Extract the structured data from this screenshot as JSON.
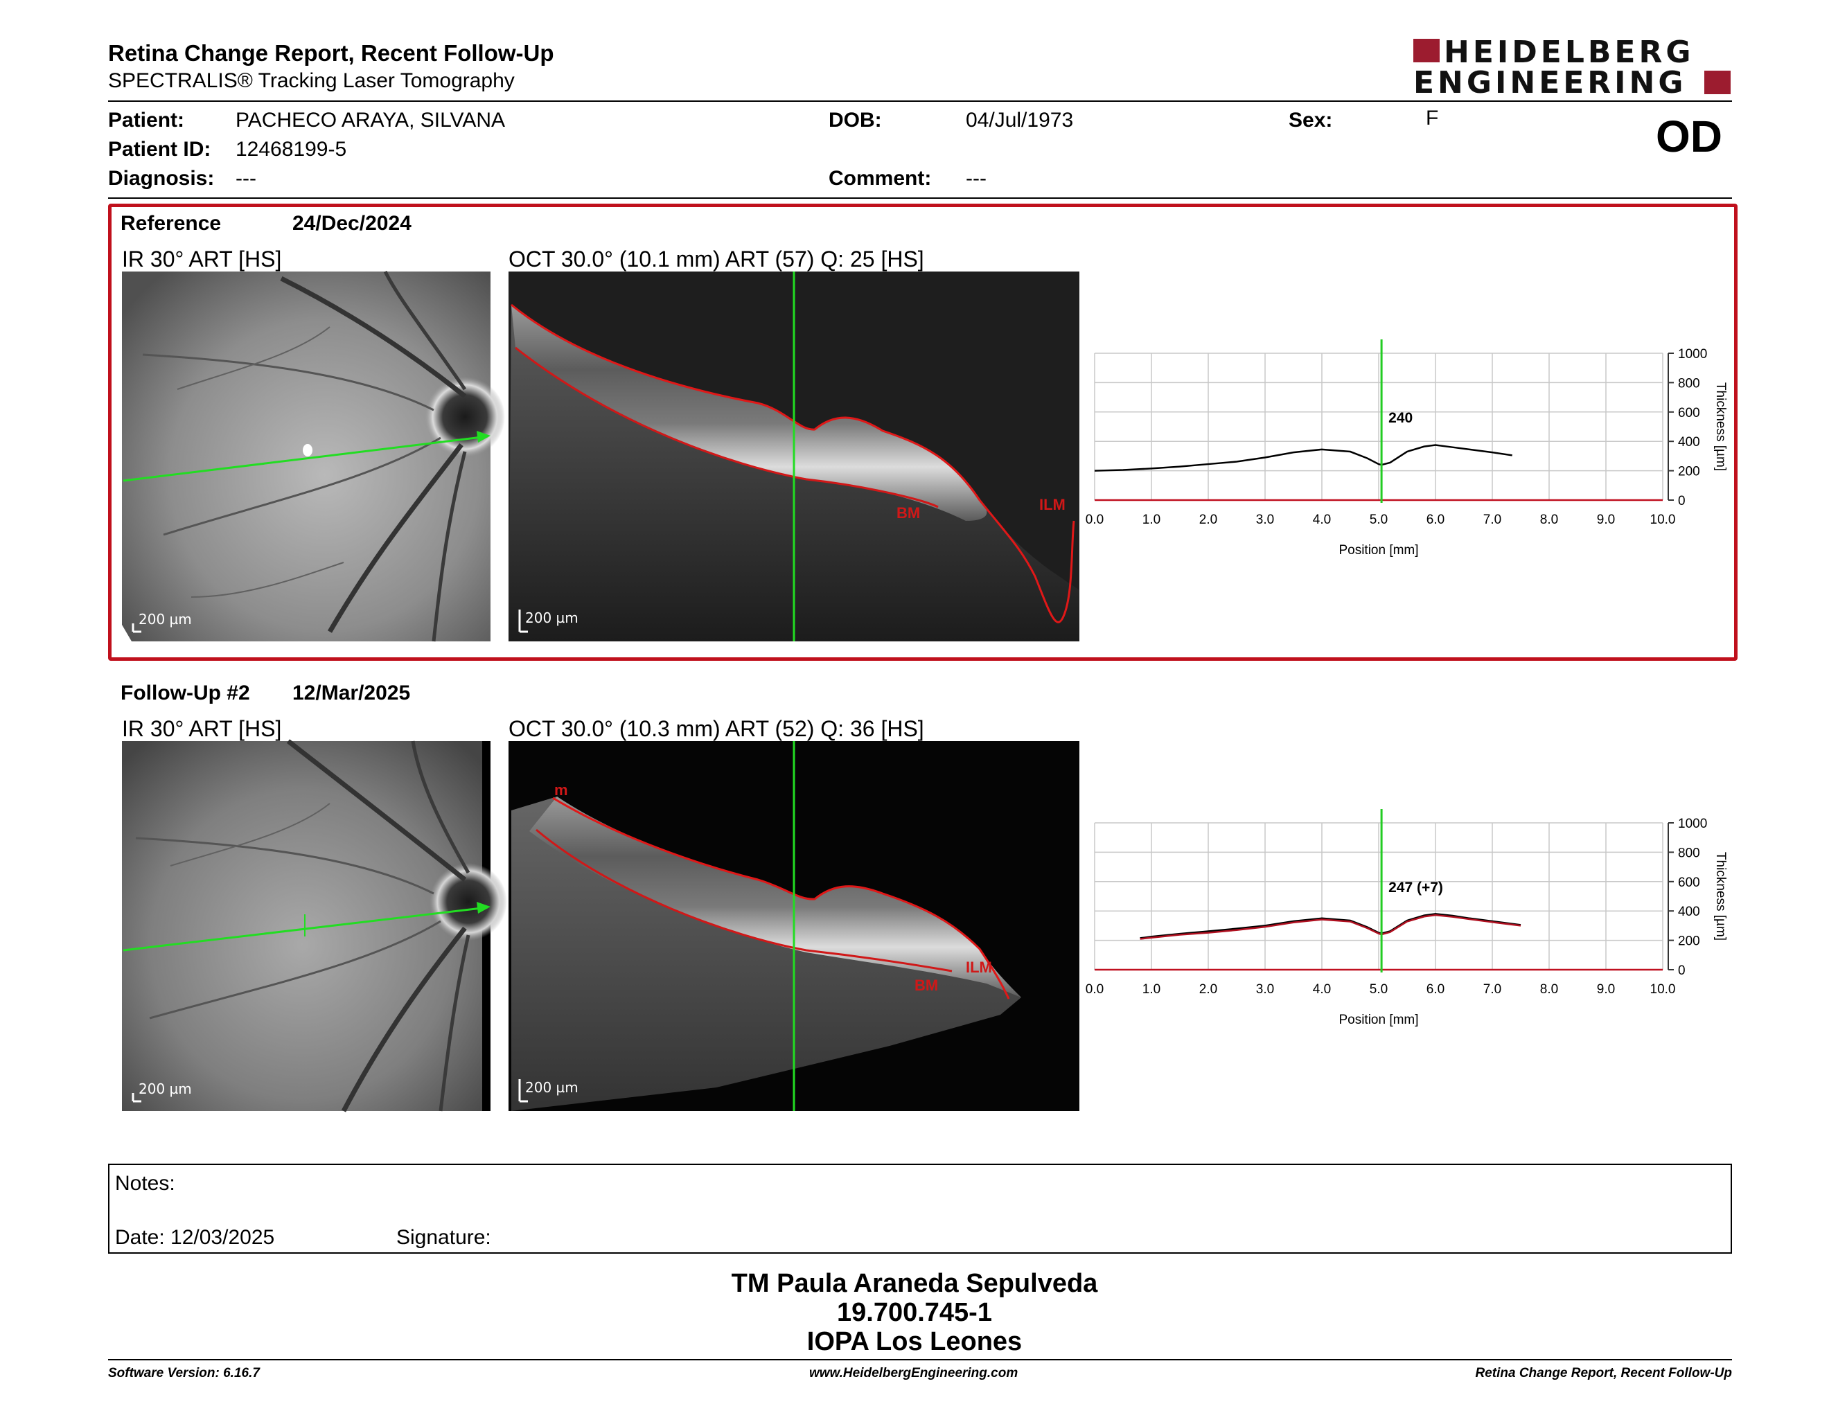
{
  "header": {
    "title": "Retina Change Report, Recent Follow-Up",
    "subtitle": "SPECTRALIS® Tracking Laser Tomography",
    "logo_line1": "HEIDELBERG",
    "logo_line2": "ENGINEERING",
    "eye": "OD"
  },
  "patient": {
    "patient_label": "Patient:",
    "patient_name": "PACHECO ARAYA, SILVANA",
    "id_label": "Patient ID:",
    "id_value": "12468199-5",
    "diagnosis_label": "Diagnosis:",
    "diagnosis_value": "---",
    "dob_label": "DOB:",
    "dob_value": "04/Jul/1973",
    "comment_label": "Comment:",
    "comment_value": "---",
    "sex_label": "Sex:",
    "sex_value": "F"
  },
  "reference": {
    "label": "Reference",
    "date": "24/Dec/2024",
    "ir_caption": "IR 30° ART [HS]",
    "oct_caption": "OCT 30.0° (10.1 mm) ART (57) Q: 25 [HS]",
    "ir_scale": "200 µm",
    "oct_scale": "200 µm",
    "annotation_bm": "BM",
    "annotation_ilm": "ILM",
    "marker_value": "240"
  },
  "followup": {
    "label": "Follow-Up #2",
    "date": "12/Mar/2025",
    "ir_caption": "IR 30° ART [HS]",
    "oct_caption": "OCT 30.0° (10.3 mm) ART (52) Q: 36 [HS]",
    "ir_scale": "200 µm",
    "oct_scale": "200 µm",
    "annotation_m": "m",
    "annotation_bm": "BM",
    "annotation_ilm": "ILM",
    "marker_value": "247 (+7)"
  },
  "chart_data": [
    {
      "type": "line",
      "xlabel": "Position [mm]",
      "ylabel": "Thickness [µm]",
      "xlim": [
        0,
        10.0
      ],
      "ylim": [
        0,
        1000
      ],
      "x_ticks": [
        "0.0",
        "1.0",
        "2.0",
        "3.0",
        "4.0",
        "5.0",
        "6.0",
        "7.0",
        "8.0",
        "9.0",
        "10.0"
      ],
      "y_ticks": [
        "0",
        "200",
        "400",
        "600",
        "800",
        "1000"
      ],
      "marker_x": 5.05,
      "marker_label": "240",
      "grid": true,
      "series": [
        {
          "color": "#000000",
          "x": [
            0.0,
            0.5,
            1.0,
            1.5,
            2.0,
            2.5,
            3.0,
            3.5,
            4.0,
            4.5,
            4.8,
            5.0,
            5.05,
            5.2,
            5.5,
            5.8,
            6.0,
            6.3,
            6.6,
            7.0,
            7.35
          ],
          "y": [
            200,
            205,
            215,
            228,
            245,
            262,
            290,
            325,
            345,
            330,
            285,
            245,
            240,
            255,
            330,
            365,
            375,
            360,
            345,
            325,
            305
          ]
        }
      ]
    },
    {
      "type": "line",
      "xlabel": "Position [mm]",
      "ylabel": "Thickness [µm]",
      "xlim": [
        0,
        10.0
      ],
      "ylim": [
        0,
        1000
      ],
      "x_ticks": [
        "0.0",
        "1.0",
        "2.0",
        "3.0",
        "4.0",
        "5.0",
        "6.0",
        "7.0",
        "8.0",
        "9.0",
        "10.0"
      ],
      "y_ticks": [
        "0",
        "200",
        "400",
        "600",
        "800",
        "1000"
      ],
      "marker_x": 5.05,
      "marker_label": "247 (+7)",
      "grid": true,
      "series": [
        {
          "color": "#000000",
          "x": [
            0.8,
            1.0,
            1.5,
            2.0,
            2.5,
            3.0,
            3.5,
            4.0,
            4.5,
            4.8,
            5.0,
            5.05,
            5.2,
            5.5,
            5.8,
            6.0,
            6.3,
            6.6,
            7.0,
            7.5
          ],
          "y": [
            215,
            225,
            245,
            262,
            280,
            300,
            330,
            350,
            335,
            290,
            252,
            247,
            262,
            335,
            370,
            380,
            368,
            350,
            330,
            305
          ]
        },
        {
          "color": "#b01020",
          "x": [
            0.8,
            1.0,
            1.5,
            2.0,
            2.5,
            3.0,
            3.5,
            4.0,
            4.5,
            4.8,
            5.0,
            5.05,
            5.2,
            5.5,
            5.8,
            6.0,
            6.3,
            6.6,
            7.0,
            7.5
          ],
          "y": [
            210,
            218,
            238,
            252,
            270,
            292,
            322,
            342,
            328,
            283,
            246,
            240,
            256,
            328,
            362,
            372,
            360,
            344,
            324,
            300
          ]
        }
      ]
    }
  ],
  "notes": {
    "notes_label": "Notes:",
    "date_label": "Date: 12/03/2025",
    "signature_label": "Signature:"
  },
  "signature_block": {
    "name": "TM Paula Araneda Sepulveda",
    "id": "19.700.745-1",
    "institution": "IOPA Los Leones"
  },
  "footer": {
    "software": "Software Version: 6.16.7",
    "website": "www.HeidelbergEngineering.com",
    "report": "Retina Change Report, Recent Follow-Up"
  }
}
